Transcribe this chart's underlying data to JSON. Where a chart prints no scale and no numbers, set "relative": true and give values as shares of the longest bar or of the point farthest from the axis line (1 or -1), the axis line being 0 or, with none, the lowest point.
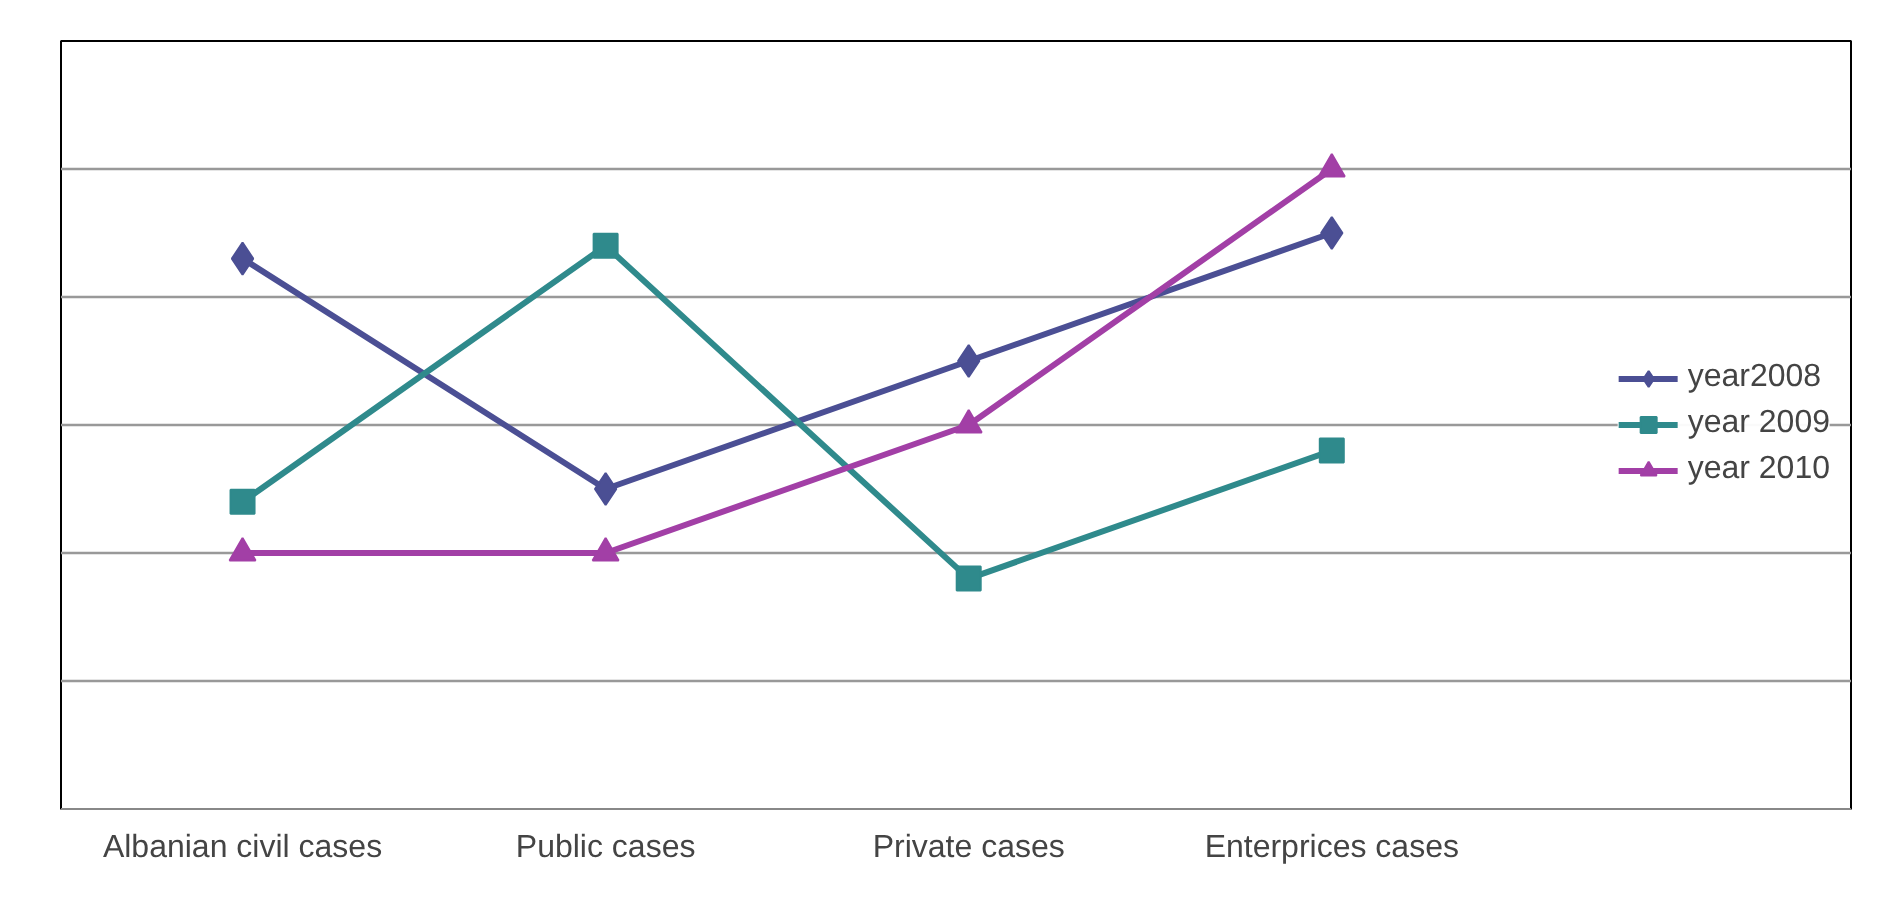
{
  "chart_data": {
    "type": "line",
    "relative": true,
    "categories": [
      "Albanian civil cases",
      "Public cases",
      "Private cases",
      "Enterprices cases"
    ],
    "series": [
      {
        "name": "year2008",
        "color": "#4b4f94",
        "marker": "diamond",
        "values": [
          0.86,
          0.5,
          0.7,
          0.9
        ]
      },
      {
        "name": "year 2009",
        "color": "#2f8a8c",
        "marker": "square",
        "values": [
          0.48,
          0.88,
          0.36,
          0.56
        ]
      },
      {
        "name": "year 2010",
        "color": "#a23fa6",
        "marker": "triangle",
        "values": [
          0.4,
          0.4,
          0.6,
          1.0
        ]
      }
    ],
    "grid": "y",
    "legend": "right",
    "line_style": "solid"
  }
}
